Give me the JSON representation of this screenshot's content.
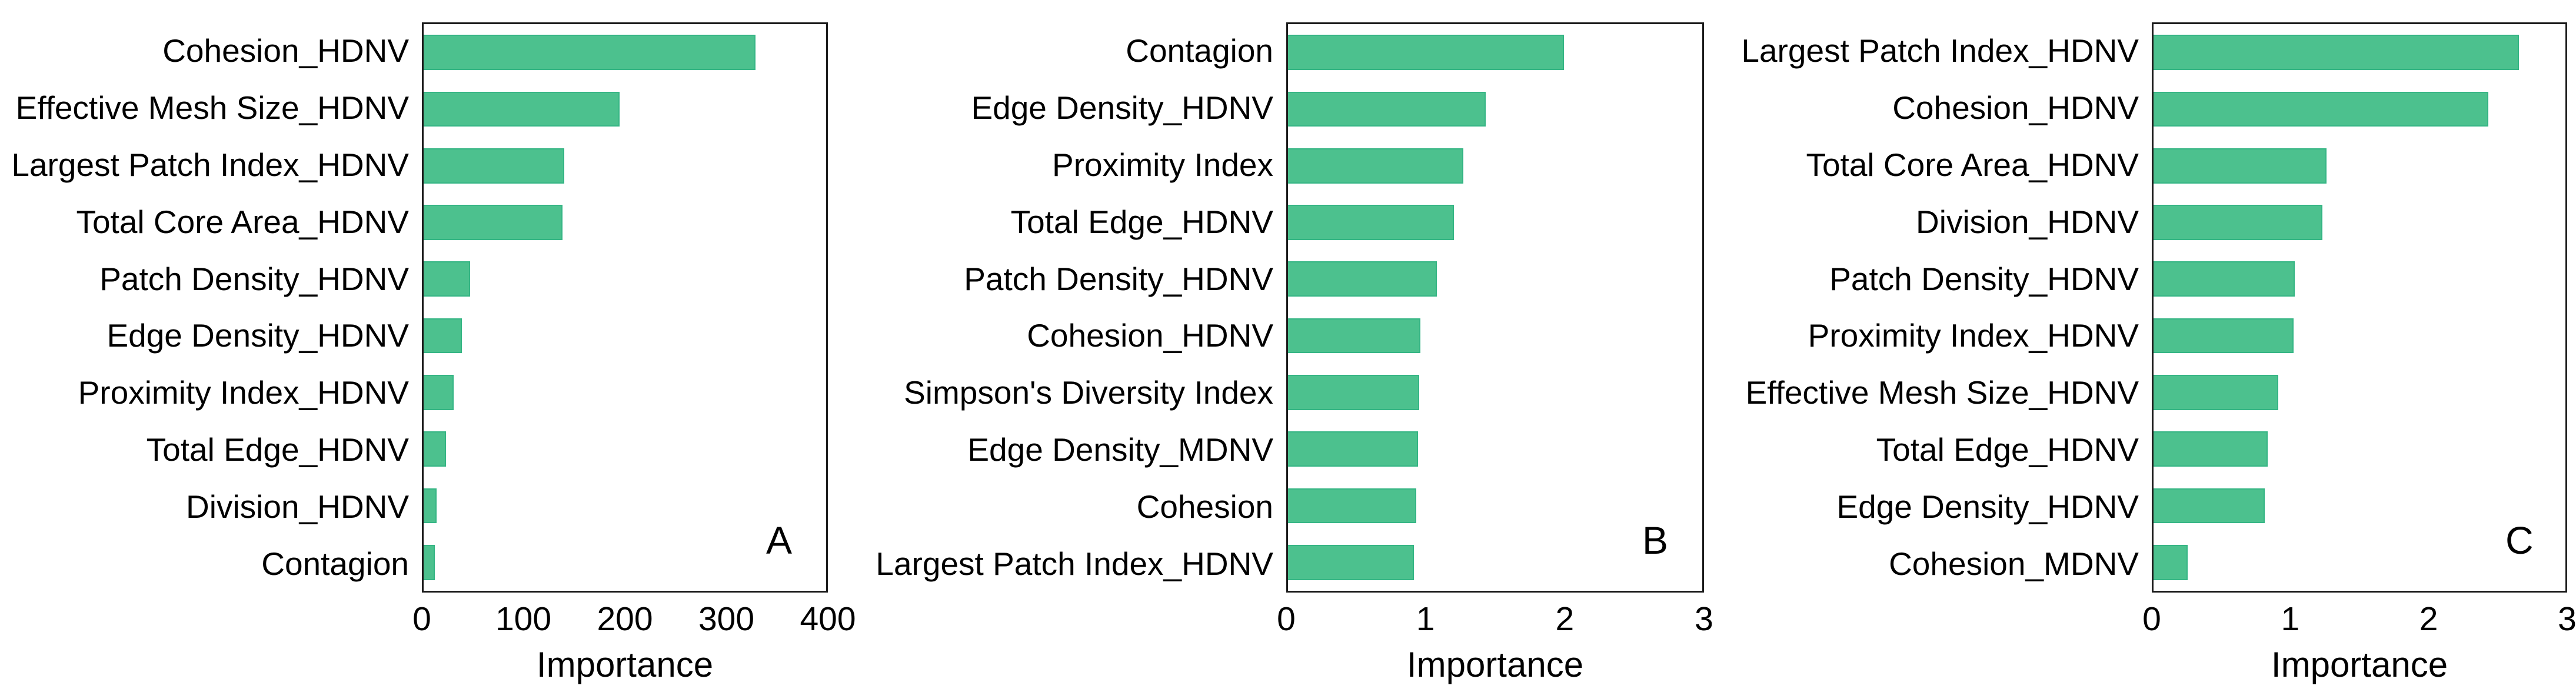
{
  "figure": {
    "xlabel": "Importance"
  },
  "colors": {
    "bar_fill": "#4cc18e",
    "bar_border": "#35b584",
    "frame": "#1c1c1c",
    "text": "#000000"
  },
  "chart_data": [
    {
      "type": "bar",
      "orientation": "horizontal",
      "panel_label": "A",
      "xlabel": "Importance",
      "xlim": [
        0,
        400
      ],
      "xticks": [
        0,
        100,
        200,
        300,
        400
      ],
      "grid": false,
      "legend": false,
      "categories": [
        "Cohesion_HDNV",
        "Effective Mesh Size_HDNV",
        "Largest Patch Index_HDNV",
        "Total Core Area_HDNV",
        "Patch Density_HDNV",
        "Edge Density_HDNV",
        "Proximity Index_HDNV",
        "Total Edge_HDNV",
        "Division_HDNV",
        "Contagion"
      ],
      "values": [
        330,
        195,
        140,
        138,
        46,
        38,
        30,
        22,
        13,
        11
      ]
    },
    {
      "type": "bar",
      "orientation": "horizontal",
      "panel_label": "B",
      "xlabel": "Importance",
      "xlim": [
        0,
        3
      ],
      "xticks": [
        0,
        1,
        2,
        3
      ],
      "grid": false,
      "legend": false,
      "categories": [
        "Contagion",
        "Edge Density_HDNV",
        "Proximity Index",
        "Total Edge_HDNV",
        "Patch Density_HDNV",
        "Cohesion_HDNV",
        "Simpson's Diversity Index",
        "Edge Density_MDNV",
        "Cohesion",
        "Largest Patch Index_HDNV"
      ],
      "values": [
        2.0,
        1.43,
        1.27,
        1.2,
        1.08,
        0.96,
        0.95,
        0.94,
        0.93,
        0.91
      ]
    },
    {
      "type": "bar",
      "orientation": "horizontal",
      "panel_label": "C",
      "xlabel": "Importance",
      "xlim": [
        0,
        3
      ],
      "xticks": [
        0,
        1,
        2,
        3
      ],
      "grid": false,
      "legend": false,
      "categories": [
        "Largest Patch Index_HDNV",
        "Cohesion_HDNV",
        "Total Core Area_HDNV",
        "Division_HDNV",
        "Patch Density_HDNV",
        "Proximity Index_HDNV",
        "Effective Mesh Size_HDNV",
        "Total Edge_HDNV",
        "Edge Density_HDNV",
        "Cohesion_MDNV"
      ],
      "values": [
        2.66,
        2.44,
        1.26,
        1.23,
        1.03,
        1.02,
        0.91,
        0.83,
        0.81,
        0.25
      ]
    }
  ]
}
